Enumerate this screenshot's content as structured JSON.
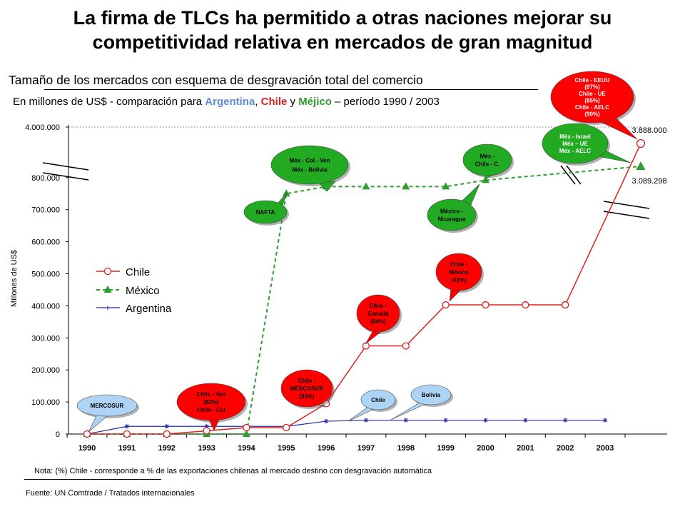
{
  "title_line1": "La firma de TLCs ha permitido a otras naciones mejorar su",
  "title_line2": "competitividad relativa en mercados de gran magnitud",
  "subtitle": "Tamaño de los mercados con esquema de desgravación total del comercio",
  "subtitle2": {
    "prefix": "En millones de US$ - comparación para ",
    "argentina": "Argentina",
    "sep1": ", ",
    "chile": "Chile",
    "sep2": " y ",
    "mexico": "Méjico",
    "suffix": " – período 1990 / 2003"
  },
  "note": "Nota: (%) Chile  - corresponde a % de las exportaciones chilenas al mercado destino con desgravación automática",
  "source": "Fuente: UN Comtrade / Tratados internacionales",
  "colors": {
    "chile": "#e02020",
    "mexico": "#2e9e2e",
    "argentina": "#2a2aa0",
    "callout_red": "#ff0000",
    "callout_green": "#22aa22",
    "callout_blue": "#aed4f5"
  },
  "chart_data": {
    "type": "line",
    "ylabel": "Millones de US$",
    "categories": [
      "1990",
      "1991",
      "1992",
      "1993",
      "1994",
      "1995",
      "1996",
      "1997",
      "1998",
      "1999",
      "2000",
      "2001",
      "2002",
      "2003"
    ],
    "yticks": [
      "0",
      "100.000",
      "200.000",
      "300.000",
      "400.000",
      "500.000",
      "600.000",
      "700.000",
      "800.000"
    ],
    "ytick_values": [
      0,
      100000,
      200000,
      300000,
      400000,
      500000,
      600000,
      700000,
      800000
    ],
    "ylim": [
      0,
      900000
    ],
    "break_tick": "4.000.000",
    "legend": [
      "Chile",
      "México",
      "Argentina"
    ],
    "series": [
      {
        "name": "Chile",
        "style": "line-circle",
        "points": [
          [
            "1990",
            0
          ],
          [
            "1991",
            0
          ],
          [
            "1992",
            0
          ],
          [
            "1993",
            10000
          ],
          [
            "1994",
            20000
          ],
          [
            "1995",
            20000
          ],
          [
            "1996",
            95000
          ],
          [
            "1997",
            275000
          ],
          [
            "1998",
            275000
          ],
          [
            "1999",
            403000
          ],
          [
            "2000",
            403000
          ],
          [
            "2001",
            403000
          ],
          [
            "2002",
            403000
          ]
        ],
        "final_value": 3888000,
        "final_label": "3.888.000"
      },
      {
        "name": "México",
        "style": "dashed-triangle",
        "points": [
          [
            "1990",
            0
          ],
          [
            "1991",
            0
          ],
          [
            "1992",
            0
          ],
          [
            "1993",
            0
          ],
          [
            "1994",
            0
          ],
          [
            "1995",
            750000
          ],
          [
            "1996",
            772000
          ],
          [
            "1997",
            772000
          ],
          [
            "1998",
            772000
          ],
          [
            "1999",
            772000
          ],
          [
            "2000",
            792000
          ]
        ],
        "final_value": 3089298,
        "final_label": "3.089.298"
      },
      {
        "name": "Argentina",
        "style": "line-asterisk",
        "points": [
          [
            "1990",
            0
          ],
          [
            "1991",
            24000
          ],
          [
            "1992",
            24000
          ],
          [
            "1993",
            24000
          ],
          [
            "1994",
            24000
          ],
          [
            "1995",
            24000
          ],
          [
            "1996",
            40000
          ],
          [
            "1997",
            43000
          ],
          [
            "1998",
            43000
          ],
          [
            "1999",
            43000
          ],
          [
            "2000",
            43000
          ],
          [
            "2001",
            43000
          ],
          [
            "2002",
            43000
          ],
          [
            "2003",
            43000
          ]
        ]
      }
    ],
    "callouts": [
      {
        "id": "chile-eeuu",
        "color": "red",
        "lines": [
          "Chile - EEUU",
          "(87%)",
          "Chile - UE",
          "(85%)",
          "Chile - AELC",
          "(90%)"
        ]
      },
      {
        "id": "mex-israel",
        "color": "green",
        "lines": [
          "Méx - Israel",
          "Méx – UE",
          "Méx - AELC"
        ]
      },
      {
        "id": "mex-col-ven",
        "color": "green",
        "lines": [
          "Méx - Col - Ven",
          "Méx - Bolivia"
        ]
      },
      {
        "id": "mex-chile",
        "color": "green",
        "lines": [
          "Méx -",
          "Chile - C."
        ]
      },
      {
        "id": "nafta",
        "color": "green",
        "lines": [
          "NAFTA"
        ]
      },
      {
        "id": "mex-nicaragua",
        "color": "green",
        "lines": [
          "México -",
          "Nicaragua"
        ]
      },
      {
        "id": "chile-mexico",
        "color": "red",
        "lines": [
          "Chile -",
          "México",
          "(33%)"
        ]
      },
      {
        "id": "chile-canada",
        "color": "red",
        "lines": [
          "Chile -",
          "Canadá",
          "(84%)"
        ]
      },
      {
        "id": "chile-mercosur",
        "color": "red",
        "lines": [
          "Chile -",
          "MERCOSUR",
          "(30%)"
        ]
      },
      {
        "id": "chile-ven-col",
        "color": "red",
        "lines": [
          "Chile - Ven",
          "(82%)",
          "Chile - Col"
        ]
      },
      {
        "id": "mercosur",
        "color": "blue",
        "lines": [
          "MERCOSUR"
        ]
      },
      {
        "id": "chile-blue",
        "color": "blue",
        "lines": [
          "Chile"
        ]
      },
      {
        "id": "bolivia",
        "color": "blue",
        "lines": [
          "Bolivia"
        ]
      }
    ]
  }
}
